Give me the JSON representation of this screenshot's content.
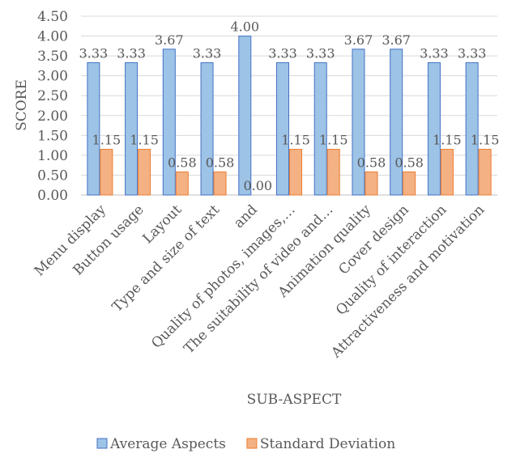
{
  "chart_data": {
    "type": "bar",
    "title": "",
    "xlabel": "SUB-ASPECT",
    "ylabel": "SCORE",
    "ylim": [
      0,
      4.5
    ],
    "yticks": [
      "0.00",
      "0.50",
      "1.00",
      "1.50",
      "2.00",
      "2.50",
      "3.00",
      "3.50",
      "4.00",
      "4.50"
    ],
    "grid": true,
    "legend_position": "bottom",
    "categories": [
      "Menu display",
      "Button usage",
      "Layout",
      "Type and size of text",
      "and",
      "Quality of photos, images,…",
      "The suitability of video and…",
      "Animation quality",
      "Cover design",
      "Quality of interaction",
      "Attractiveness and motivation"
    ],
    "series": [
      {
        "name": "Average Aspects",
        "color": "#9DC3E6",
        "stroke": "#4472C4",
        "values": [
          3.33,
          3.33,
          3.67,
          3.33,
          4.0,
          3.33,
          3.33,
          3.67,
          3.67,
          3.33,
          3.33
        ],
        "labels": [
          "3.33",
          "3.33",
          "3.67",
          "3.33",
          "4.00",
          "3.33",
          "3.33",
          "3.67",
          "3.67",
          "3.33",
          "3.33"
        ]
      },
      {
        "name": "Standard Deviation",
        "color": "#F4B183",
        "stroke": "#ED7D31",
        "values": [
          1.15,
          1.15,
          0.58,
          0.58,
          0.0,
          1.15,
          1.15,
          0.58,
          0.58,
          1.15,
          1.15
        ],
        "labels": [
          "1.15",
          "1.15",
          "0.58",
          "0.58",
          "0.00",
          "1.15",
          "1.15",
          "0.58",
          "0.58",
          "1.15",
          "1.15"
        ]
      }
    ]
  }
}
